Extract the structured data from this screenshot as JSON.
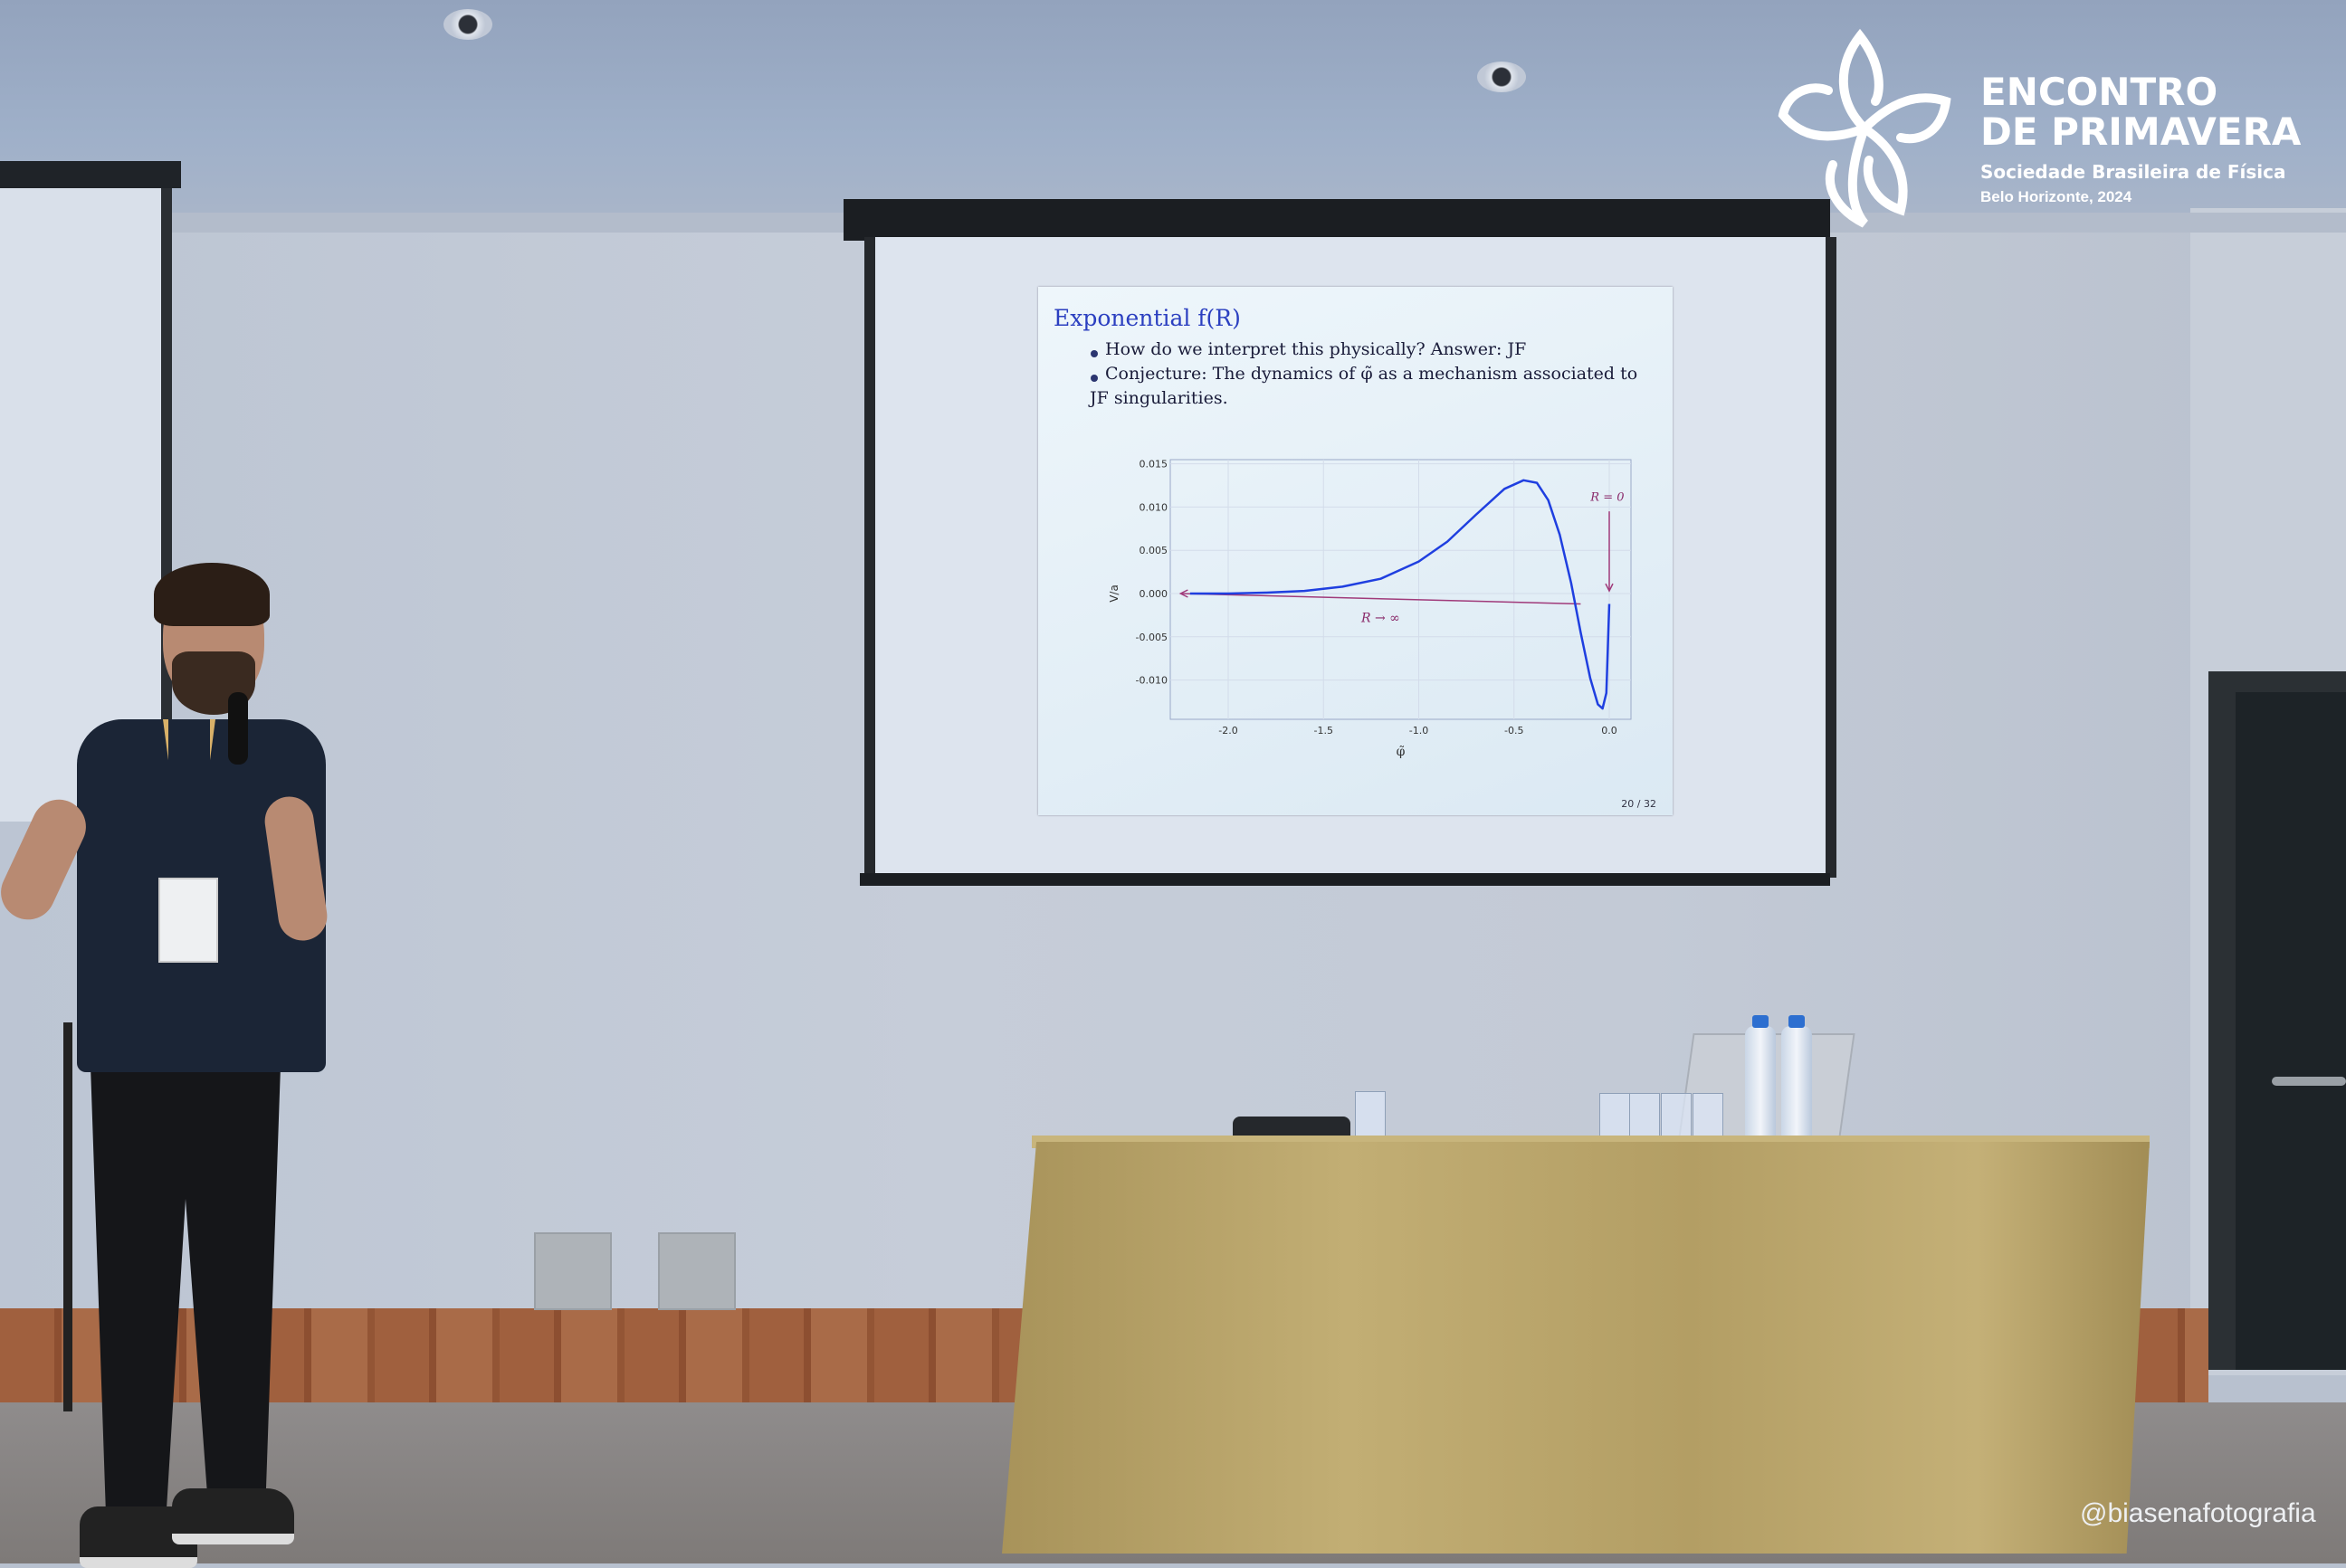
{
  "slide": {
    "title": "Exponential f(R)",
    "bullets": [
      "How do we interpret this physically? Answer: JF",
      "Conjecture: The dynamics of φ̃ as a mechanism associated to",
      "JF singularities."
    ],
    "page_number": "20 / 32"
  },
  "chart_data": {
    "type": "line",
    "title": "",
    "xlabel": "φ̃",
    "ylabel": "V/a",
    "xlim": [
      -2.3,
      0.1
    ],
    "ylim": [
      -0.014,
      0.015
    ],
    "x_ticks": [
      "-2.0",
      "-1.5",
      "-1.0",
      "-0.5",
      "0.0"
    ],
    "x_tick_values": [
      -2.0,
      -1.5,
      -1.0,
      -0.5,
      0.0
    ],
    "y_ticks": [
      "0.015",
      "0.010",
      "0.005",
      "0.000",
      "-0.005",
      "-0.010"
    ],
    "y_tick_values": [
      0.015,
      0.01,
      0.005,
      0.0,
      -0.005,
      -0.01
    ],
    "grid": true,
    "series": [
      {
        "color": "#1f3fe0",
        "x": [
          -2.2,
          -2.0,
          -1.8,
          -1.6,
          -1.4,
          -1.2,
          -1.0,
          -0.85,
          -0.7,
          -0.55,
          -0.45,
          -0.38,
          -0.32,
          -0.26,
          -0.2,
          -0.15,
          -0.1,
          -0.06,
          -0.035,
          -0.015,
          0.0
        ],
        "y": [
          0.0,
          0.0,
          0.0001,
          0.0003,
          0.0008,
          0.0017,
          0.0037,
          0.006,
          0.0091,
          0.0121,
          0.0131,
          0.0128,
          0.0108,
          0.0068,
          0.0012,
          -0.0045,
          -0.0098,
          -0.0128,
          -0.0133,
          -0.0115,
          -0.0012
        ]
      }
    ],
    "annotations": [
      {
        "text": "R = 0",
        "color": "#8a2a6a",
        "arrow": "down",
        "at_x": 0.0
      },
      {
        "text": "R → ∞",
        "color": "#8a2a6a",
        "arrow": "left",
        "at_y": 0.0
      }
    ]
  },
  "logo": {
    "line1": "ENCONTRO",
    "line2": "DE PRIMAVERA",
    "org": "Sociedade Brasileira de Física",
    "place": "Belo Horizonte, 2024"
  },
  "watermark": "@biasenafotografia"
}
